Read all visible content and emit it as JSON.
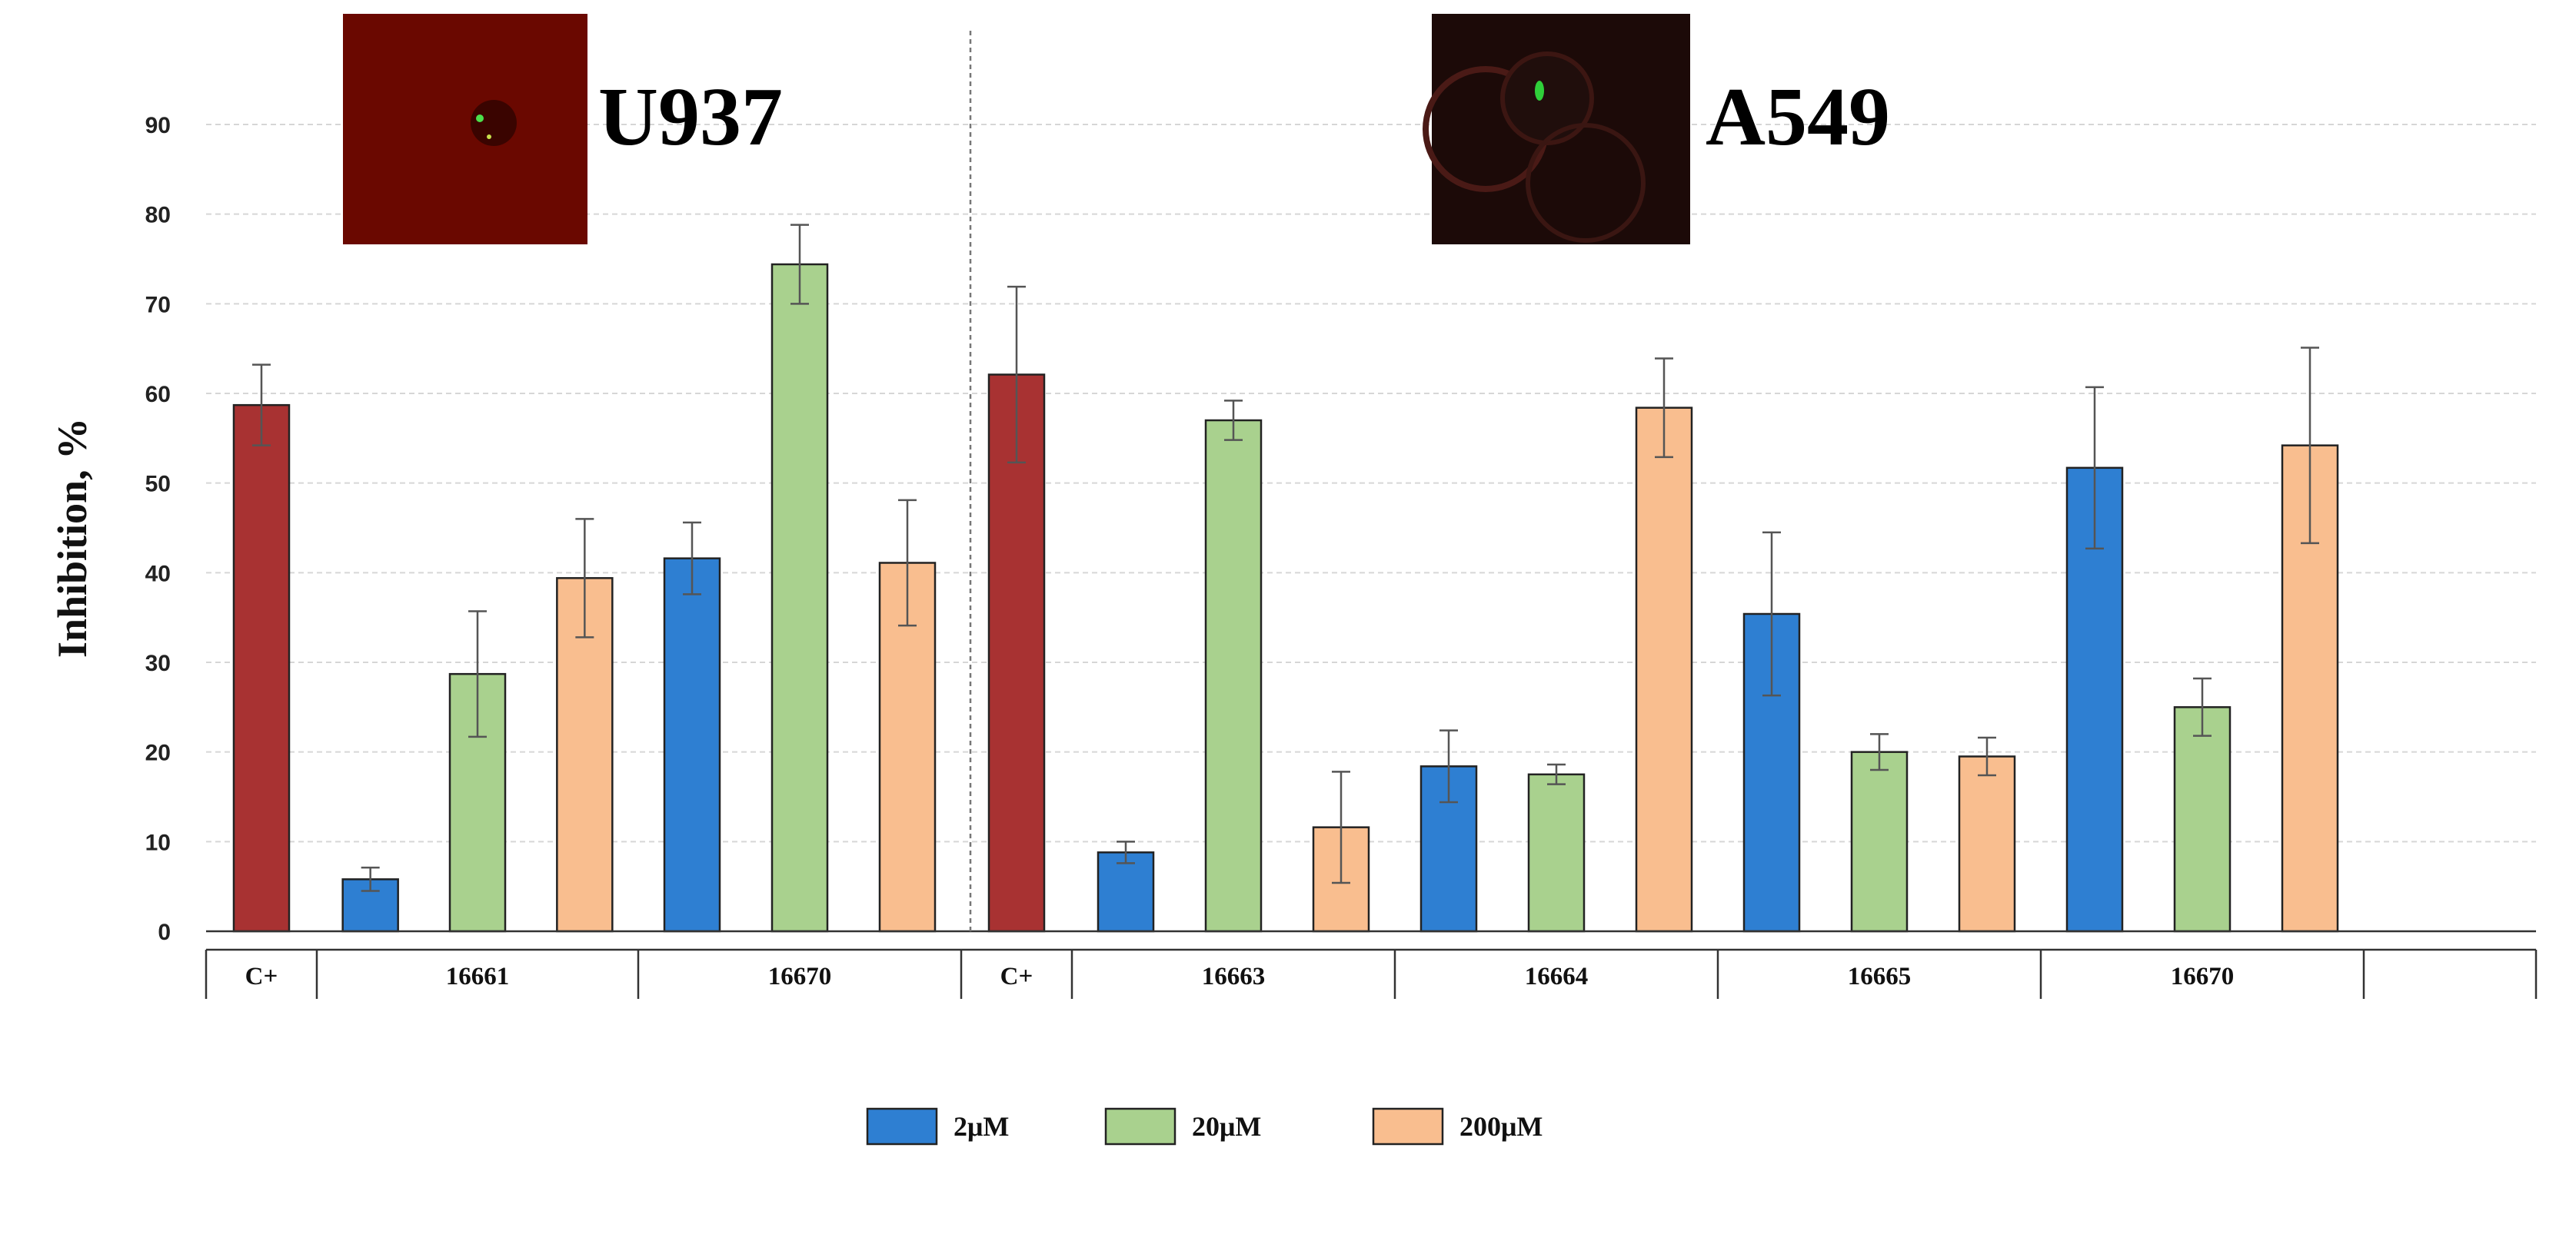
{
  "chart_data": {
    "type": "bar",
    "ylabel": "Inhibition, %",
    "ylim": [
      0,
      90
    ],
    "yticks": [
      0,
      10,
      20,
      30,
      40,
      50,
      60,
      70,
      80,
      90
    ],
    "grid": true,
    "legend_position": "bottom-center",
    "panels": [
      {
        "label": "U937",
        "inset_image": "fluorescence micrograph (red background, green spot)"
      },
      {
        "label": "A549",
        "inset_image": "fluorescence micrograph (dark background, cells with green spot)"
      }
    ],
    "series": [
      {
        "name": "2μM",
        "color": "#2E7FD2"
      },
      {
        "name": "20μM",
        "color": "#A9D18E"
      },
      {
        "name": "200μM",
        "color": "#F9BE8F"
      }
    ],
    "control_color": "#A83232",
    "groups": [
      {
        "panel": "U937",
        "category": "C+",
        "bars": [
          {
            "series": "control",
            "value": 58.7,
            "error": 4.5
          }
        ]
      },
      {
        "panel": "U937",
        "category": "16661",
        "bars": [
          {
            "series": "2μM",
            "value": 5.8,
            "error": 1.3
          },
          {
            "series": "20μM",
            "value": 28.7,
            "error": 7.0
          },
          {
            "series": "200μM",
            "value": 39.4,
            "error": 6.6
          }
        ]
      },
      {
        "panel": "U937",
        "category": "16670",
        "bars": [
          {
            "series": "2μM",
            "value": 41.6,
            "error": 4.0
          },
          {
            "series": "20μM",
            "value": 74.4,
            "error": 4.4
          },
          {
            "series": "200μM",
            "value": 41.1,
            "error": 7.0
          }
        ]
      },
      {
        "panel": "A549",
        "category": "C+",
        "bars": [
          {
            "series": "control",
            "value": 62.1,
            "error": 9.8
          }
        ]
      },
      {
        "panel": "A549",
        "category": "16663",
        "bars": [
          {
            "series": "2μM",
            "value": 8.8,
            "error": 1.2
          },
          {
            "series": "20μM",
            "value": 57.0,
            "error": 2.2
          },
          {
            "series": "200μM",
            "value": 11.6,
            "error": 6.2
          }
        ]
      },
      {
        "panel": "A549",
        "category": "16664",
        "bars": [
          {
            "series": "2μM",
            "value": 18.4,
            "error": 4.0
          },
          {
            "series": "20μM",
            "value": 17.5,
            "error": 1.1
          },
          {
            "series": "200μM",
            "value": 58.4,
            "error": 5.5
          }
        ]
      },
      {
        "panel": "A549",
        "category": "16665",
        "bars": [
          {
            "series": "2μM",
            "value": 35.4,
            "error": 9.1
          },
          {
            "series": "20μM",
            "value": 20.0,
            "error": 2.0
          },
          {
            "series": "200μM",
            "value": 19.5,
            "error": 2.1
          }
        ]
      },
      {
        "panel": "A549",
        "category": "16670",
        "bars": [
          {
            "series": "2μM",
            "value": 51.7,
            "error": 9.0
          },
          {
            "series": "20μM",
            "value": 25.0,
            "error": 3.2
          },
          {
            "series": "200μM",
            "value": 54.2,
            "error": 10.9
          }
        ]
      }
    ]
  }
}
